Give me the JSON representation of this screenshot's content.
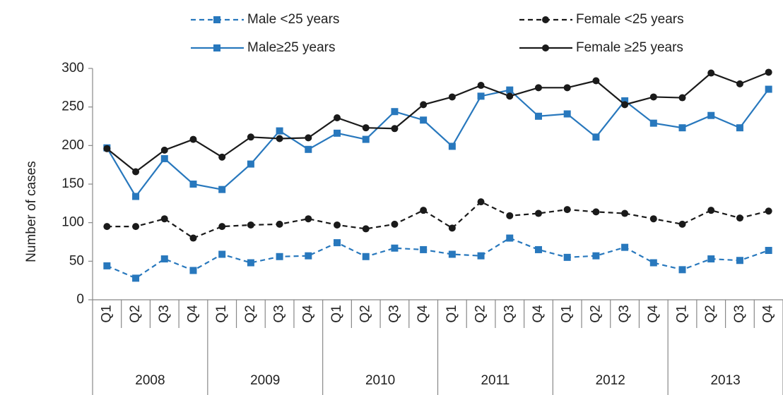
{
  "chart_data": {
    "type": "line",
    "y_label": "Number of cases",
    "categories": [
      "Q1",
      "Q2",
      "Q3",
      "Q4",
      "Q1",
      "Q2",
      "Q3",
      "Q4",
      "Q1",
      "Q2",
      "Q3",
      "Q4",
      "Q1",
      "Q2",
      "Q3",
      "Q4",
      "Q1",
      "Q2",
      "Q3",
      "Q4",
      "Q1",
      "Q2",
      "Q3",
      "Q4"
    ],
    "groups": [
      "2008",
      "2009",
      "2010",
      "2011",
      "2012",
      "2013"
    ],
    "ylim": [
      0,
      300
    ],
    "yticks": [
      0,
      50,
      100,
      150,
      200,
      250,
      300
    ],
    "grid": false,
    "series": [
      {
        "name": "Male <25 years",
        "color": "#2878bd",
        "dashed": true,
        "marker": "square",
        "values": [
          44,
          28,
          53,
          38,
          59,
          48,
          56,
          57,
          74,
          56,
          67,
          65,
          59,
          57,
          80,
          65,
          55,
          57,
          68,
          48,
          39,
          53,
          51,
          64
        ]
      },
      {
        "name": "Female <25 years",
        "color": "#1a1a1a",
        "dashed": true,
        "marker": "circle",
        "values": [
          95,
          95,
          105,
          80,
          95,
          97,
          98,
          105,
          97,
          92,
          98,
          116,
          93,
          127,
          109,
          112,
          117,
          114,
          112,
          105,
          98,
          116,
          106,
          115
        ]
      },
      {
        "name": "Male≥25 years",
        "color": "#2878bd",
        "dashed": false,
        "marker": "square",
        "values": [
          197,
          134,
          183,
          150,
          143,
          176,
          219,
          195,
          216,
          208,
          244,
          233,
          199,
          264,
          272,
          238,
          241,
          211,
          258,
          229,
          223,
          239,
          223,
          273
        ]
      },
      {
        "name": "Female ≥25 years",
        "color": "#1a1a1a",
        "dashed": false,
        "marker": "circle",
        "values": [
          196,
          166,
          194,
          208,
          185,
          211,
          209,
          210,
          236,
          223,
          222,
          253,
          263,
          278,
          264,
          275,
          275,
          284,
          253,
          263,
          262,
          294,
          280,
          295
        ]
      }
    ]
  }
}
